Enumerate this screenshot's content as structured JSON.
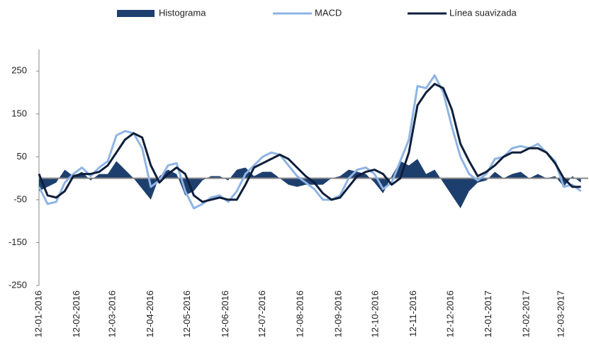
{
  "chart_data": {
    "type": "line",
    "x": [
      "12-01-2016",
      "19-01-2016",
      "26-01-2016",
      "02-02-2016",
      "09-02-2016",
      "16-02-2016",
      "23-02-2016",
      "01-03-2016",
      "08-03-2016",
      "15-03-2016",
      "22-03-2016",
      "29-03-2016",
      "05-04-2016",
      "12-04-2016",
      "19-04-2016",
      "26-04-2016",
      "03-05-2016",
      "10-05-2016",
      "17-05-2016",
      "24-05-2016",
      "31-05-2016",
      "07-06-2016",
      "14-06-2016",
      "21-06-2016",
      "28-06-2016",
      "05-07-2016",
      "12-07-2016",
      "19-07-2016",
      "26-07-2016",
      "02-08-2016",
      "09-08-2016",
      "16-08-2016",
      "23-08-2016",
      "30-08-2016",
      "06-09-2016",
      "13-09-2016",
      "20-09-2016",
      "27-09-2016",
      "04-10-2016",
      "11-10-2016",
      "18-10-2016",
      "25-10-2016",
      "01-11-2016",
      "08-11-2016",
      "15-11-2016",
      "22-11-2016",
      "29-11-2016",
      "06-12-2016",
      "13-12-2016",
      "20-12-2016",
      "27-12-2016",
      "03-01-2017",
      "10-01-2017",
      "17-01-2017",
      "24-01-2017",
      "31-01-2017",
      "07-02-2017",
      "14-02-2017",
      "21-02-2017",
      "28-02-2017",
      "07-03-2017",
      "14-03-2017",
      "21-03-2017",
      "28-03-2017"
    ],
    "series": [
      {
        "name": "Histograma",
        "type": "area",
        "color": "#1d3f6e",
        "values": [
          -30,
          -20,
          -10,
          20,
          5,
          15,
          -5,
          10,
          10,
          40,
          20,
          0,
          -25,
          -50,
          5,
          20,
          10,
          -40,
          -30,
          -5,
          5,
          5,
          -5,
          20,
          25,
          5,
          15,
          15,
          0,
          -15,
          -20,
          -15,
          -15,
          -15,
          0,
          5,
          20,
          15,
          10,
          -10,
          -35,
          5,
          40,
          30,
          45,
          10,
          20,
          -10,
          -40,
          -70,
          -30,
          -10,
          -5,
          15,
          0,
          10,
          15,
          0,
          10,
          0,
          5,
          -20,
          5,
          -10
        ]
      },
      {
        "name": "MACD",
        "type": "line",
        "color": "#8fb4e3",
        "values": [
          -20,
          -60,
          -55,
          -10,
          10,
          25,
          5,
          25,
          40,
          100,
          110,
          105,
          70,
          -20,
          -5,
          30,
          35,
          -30,
          -70,
          -60,
          -45,
          -40,
          -55,
          -30,
          10,
          30,
          50,
          60,
          55,
          30,
          5,
          -10,
          -25,
          -50,
          -50,
          -40,
          0,
          20,
          25,
          10,
          -25,
          -10,
          40,
          90,
          215,
          210,
          240,
          200,
          120,
          50,
          10,
          -5,
          10,
          45,
          50,
          70,
          75,
          70,
          80,
          60,
          40,
          -20,
          -15,
          -30
        ]
      },
      {
        "name": "Línea suavizada",
        "type": "line",
        "color": "#0e1e3a",
        "values": [
          10,
          -40,
          -45,
          -30,
          5,
          10,
          10,
          15,
          30,
          60,
          90,
          105,
          95,
          30,
          -10,
          10,
          25,
          10,
          -40,
          -55,
          -50,
          -45,
          -50,
          -50,
          -15,
          25,
          35,
          45,
          55,
          45,
          25,
          5,
          -10,
          -35,
          -50,
          -45,
          -20,
          5,
          15,
          20,
          10,
          -15,
          0,
          60,
          170,
          200,
          220,
          210,
          160,
          80,
          40,
          5,
          15,
          30,
          50,
          60,
          60,
          70,
          70,
          60,
          35,
          0,
          -20,
          -20
        ]
      }
    ],
    "xlim": [
      "12-01-2016",
      "03-04-2017"
    ],
    "xticks": [
      "12-01-2016",
      "12-02-2016",
      "12-03-2016",
      "12-04-2016",
      "12-05-2016",
      "12-06-2016",
      "12-07-2016",
      "12-08-2016",
      "12-09-2016",
      "12-10-2016",
      "12-11-2016",
      "12-12-2016",
      "12-01-2017",
      "12-02-2017",
      "12-03-2017"
    ],
    "ylim": [
      -250,
      300
    ],
    "yticks": [
      -250,
      -150,
      -50,
      50,
      150,
      250
    ],
    "grid": false,
    "legend": "top"
  }
}
